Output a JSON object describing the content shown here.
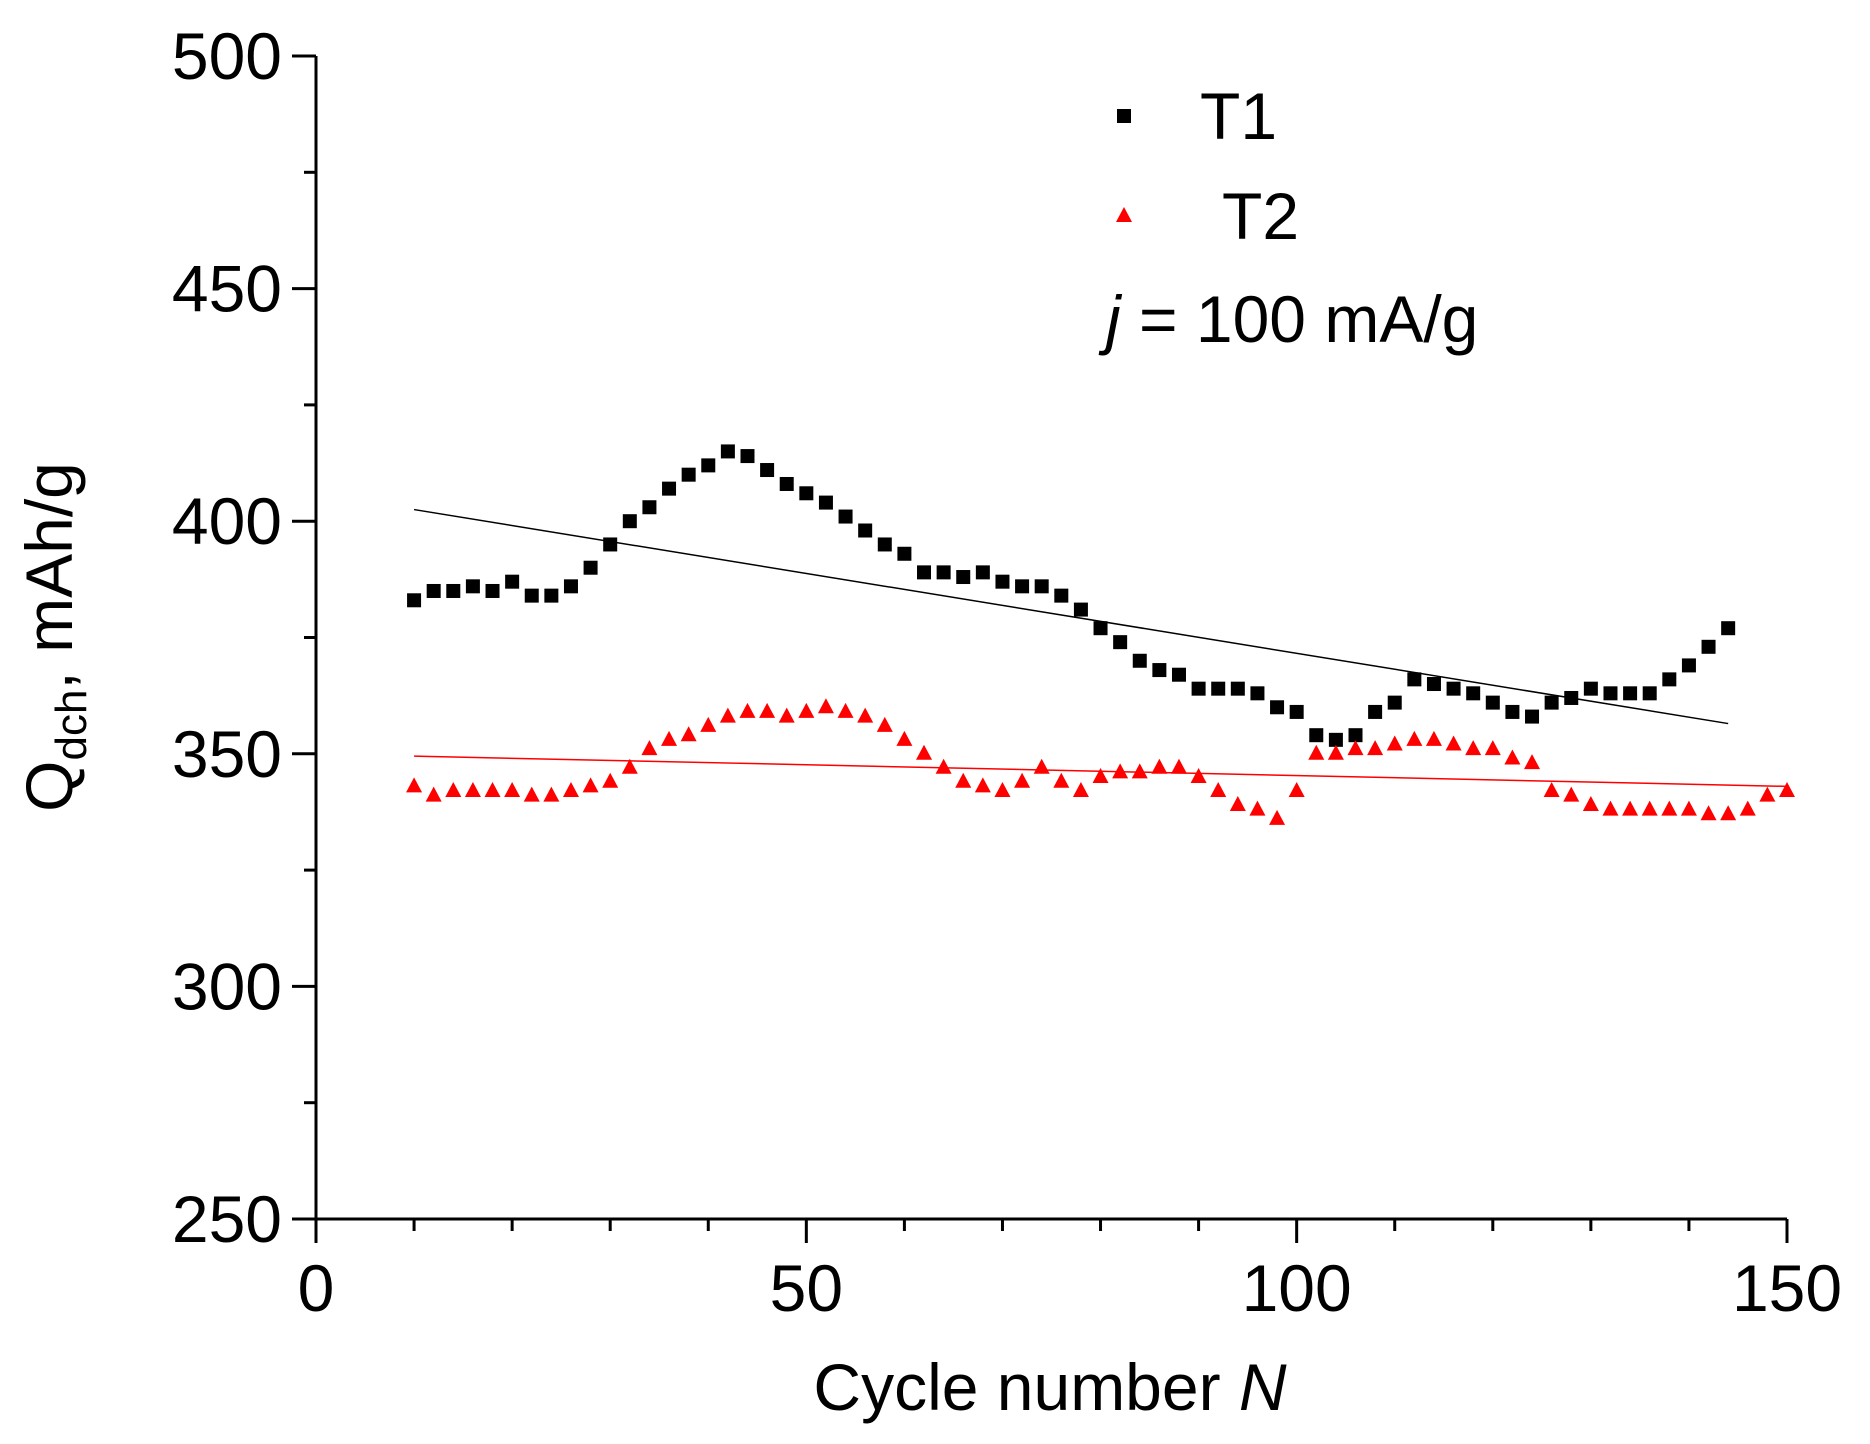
{
  "chart_data": {
    "type": "scatter",
    "xlabel_parts": [
      "Cycle number ",
      "N"
    ],
    "ylabel_parts": [
      "Q",
      "dch",
      ", mAh/g"
    ],
    "annotation_parts": [
      "j",
      " = 100 mA/g"
    ],
    "x": [
      10,
      12,
      14,
      16,
      18,
      20,
      22,
      24,
      26,
      28,
      30,
      32,
      34,
      36,
      38,
      40,
      42,
      44,
      46,
      48,
      50,
      52,
      54,
      56,
      58,
      60,
      62,
      64,
      66,
      68,
      70,
      72,
      74,
      76,
      78,
      80,
      82,
      84,
      86,
      88,
      90,
      92,
      94,
      96,
      98,
      100,
      102,
      104,
      106,
      108,
      110,
      112,
      114,
      116,
      118,
      120,
      122,
      124,
      126,
      128,
      130,
      132,
      134,
      136,
      138,
      140,
      142,
      144,
      146,
      148,
      150
    ],
    "series": [
      {
        "name": "T1",
        "color": "#000000",
        "marker": "square",
        "values": [
          383,
          385,
          385,
          386,
          385,
          387,
          384,
          384,
          386,
          390,
          395,
          400,
          403,
          407,
          410,
          412,
          415,
          414,
          411,
          408,
          406,
          404,
          401,
          398,
          395,
          393,
          389,
          389,
          388,
          389,
          387,
          386,
          386,
          384,
          381,
          377,
          374,
          370,
          368,
          367,
          364,
          364,
          364,
          363,
          360,
          359,
          354,
          353,
          354,
          359,
          361,
          366,
          365,
          364,
          363,
          361,
          359,
          358,
          361,
          362,
          364,
          363,
          363,
          363,
          366,
          369,
          373,
          377,
          null,
          null,
          null
        ],
        "fit": {
          "x": [
            10,
            144
          ],
          "values": [
            402.5,
            356.5
          ]
        }
      },
      {
        "name": "T2",
        "color": "#ff0000",
        "marker": "triangle",
        "values": [
          343,
          341,
          342,
          342,
          342,
          342,
          341,
          341,
          342,
          343,
          344,
          347,
          351,
          353,
          354,
          356,
          358,
          359,
          359,
          358,
          359,
          360,
          359,
          358,
          356,
          353,
          350,
          347,
          344,
          343,
          342,
          344,
          347,
          344,
          342,
          345,
          346,
          346,
          347,
          347,
          345,
          342,
          339,
          338,
          336,
          342,
          350,
          350,
          351,
          351,
          352,
          353,
          353,
          352,
          351,
          351,
          349,
          348,
          342,
          341,
          339,
          338,
          338,
          338,
          338,
          338,
          337,
          337,
          338,
          341,
          342
        ],
        "fit": {
          "x": [
            10,
            150
          ],
          "values": [
            349.5,
            343
          ]
        }
      }
    ],
    "xlim": [
      0,
      150
    ],
    "xticks": [
      0,
      50,
      100,
      150
    ],
    "xminor_ticks": [
      10,
      20,
      30,
      40,
      60,
      70,
      80,
      90,
      110,
      120,
      130,
      140
    ],
    "ylim": [
      250,
      500
    ],
    "yticks": [
      250,
      300,
      350,
      400,
      450,
      500
    ],
    "yminor_ticks": [
      275,
      325,
      375,
      425,
      475
    ],
    "grid": false,
    "legend": "upper right"
  }
}
